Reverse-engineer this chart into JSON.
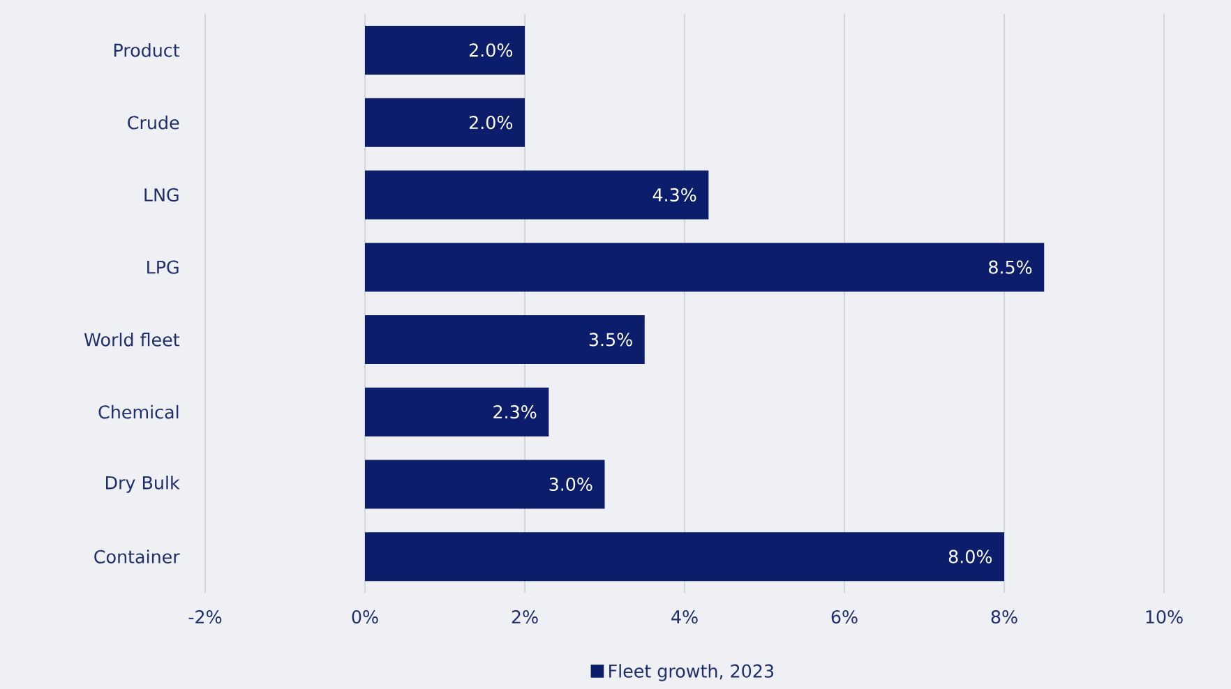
{
  "chart_data": {
    "type": "bar",
    "orientation": "horizontal",
    "categories": [
      "Product",
      "Crude",
      "LNG",
      "LPG",
      "World fleet",
      "Chemical",
      "Dry Bulk",
      "Container"
    ],
    "series": [
      {
        "name": "Fleet growth, 2023",
        "color": "#0b1d6b",
        "values": [
          2.0,
          2.0,
          4.3,
          8.5,
          3.5,
          2.3,
          3.0,
          8.0
        ],
        "value_labels": [
          "2.0%",
          "2.0%",
          "4.3%",
          "8.5%",
          "3.5%",
          "2.3%",
          "3.0%",
          "8.0%"
        ]
      }
    ],
    "xlim": [
      -2,
      10
    ],
    "xticks": [
      {
        "value": -2,
        "label": "-2%"
      },
      {
        "value": 0,
        "label": "0%"
      },
      {
        "value": 2,
        "label": "2%"
      },
      {
        "value": 4,
        "label": "4%"
      },
      {
        "value": 6,
        "label": "6%"
      },
      {
        "value": 8,
        "label": "8%"
      },
      {
        "value": 10,
        "label": "10%"
      }
    ],
    "grid": "x",
    "legend": "bottom"
  }
}
